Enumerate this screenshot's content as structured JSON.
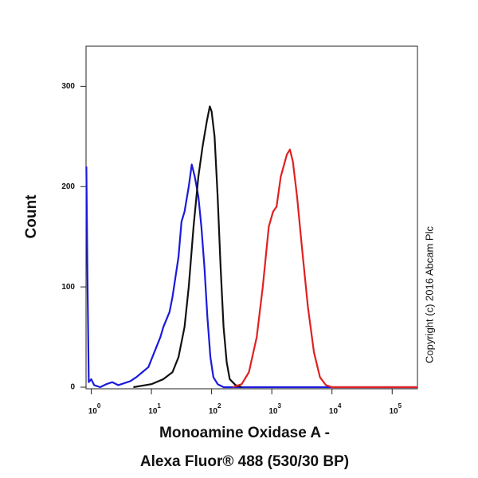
{
  "chart_data": {
    "type": "line",
    "x_label": [
      "Monoamine Oxidase A -",
      "Alexa Fluor® 488 (530/30 BP)"
    ],
    "y_label": "Count",
    "annotation": "Copyright (c) 2016 Abcam Plc",
    "x_log": true,
    "xlim": [
      0.82,
      263000
    ],
    "ylim": [
      0,
      340
    ],
    "xticks": [
      {
        "value": 1,
        "label": "10",
        "exponent": "0"
      },
      {
        "value": 10,
        "label": "10",
        "exponent": "1"
      },
      {
        "value": 100,
        "label": "10",
        "exponent": "2"
      },
      {
        "value": 1000,
        "label": "10",
        "exponent": "3"
      },
      {
        "value": 10000,
        "label": "10",
        "exponent": "4"
      },
      {
        "value": 100000,
        "label": "10",
        "exponent": "5"
      }
    ],
    "yticks": [
      0,
      100,
      200,
      300
    ],
    "series": [
      {
        "color": "#1a1adb",
        "x": [
          0.83,
          0.87,
          0.91,
          1,
          1.12,
          1.41,
          1.78,
          2.24,
          2.82,
          3.55,
          4.47,
          5.62,
          7.08,
          8.91,
          11.2,
          14.1,
          15.8,
          20,
          22.4,
          28.2,
          31.6,
          35.5,
          41.7,
          46.8,
          52.5,
          60.3,
          67.6,
          75.9,
          85.1,
          95.5,
          107,
          126,
          158,
          251000
        ],
        "values": [
          220,
          100,
          5,
          8,
          2,
          0,
          3,
          5,
          2,
          4,
          6,
          10,
          15,
          20,
          35,
          50,
          60,
          75,
          90,
          130,
          165,
          175,
          200,
          222,
          210,
          190,
          160,
          120,
          70,
          30,
          10,
          3,
          0,
          0
        ]
      },
      {
        "color": "#111111",
        "x": [
          5.01,
          10,
          15.8,
          22.4,
          28.2,
          35.5,
          41.7,
          50.1,
          60.3,
          70.8,
          83.2,
          93.3,
          100,
          112,
          126,
          141,
          158,
          178,
          200,
          251,
          316
        ],
        "values": [
          0,
          3,
          8,
          15,
          30,
          60,
          100,
          160,
          210,
          240,
          265,
          280,
          275,
          250,
          190,
          120,
          60,
          25,
          8,
          2,
          0
        ]
      },
      {
        "color": "#e02020",
        "x": [
          224,
          316,
          417,
          562,
          708,
          891,
          1050,
          1200,
          1410,
          1780,
          2000,
          2240,
          2630,
          3160,
          3980,
          5010,
          6310,
          7940,
          10000,
          263000
        ],
        "values": [
          0,
          3,
          15,
          50,
          100,
          160,
          175,
          180,
          210,
          232,
          237,
          225,
          190,
          140,
          80,
          35,
          10,
          2,
          0,
          0
        ]
      }
    ]
  }
}
